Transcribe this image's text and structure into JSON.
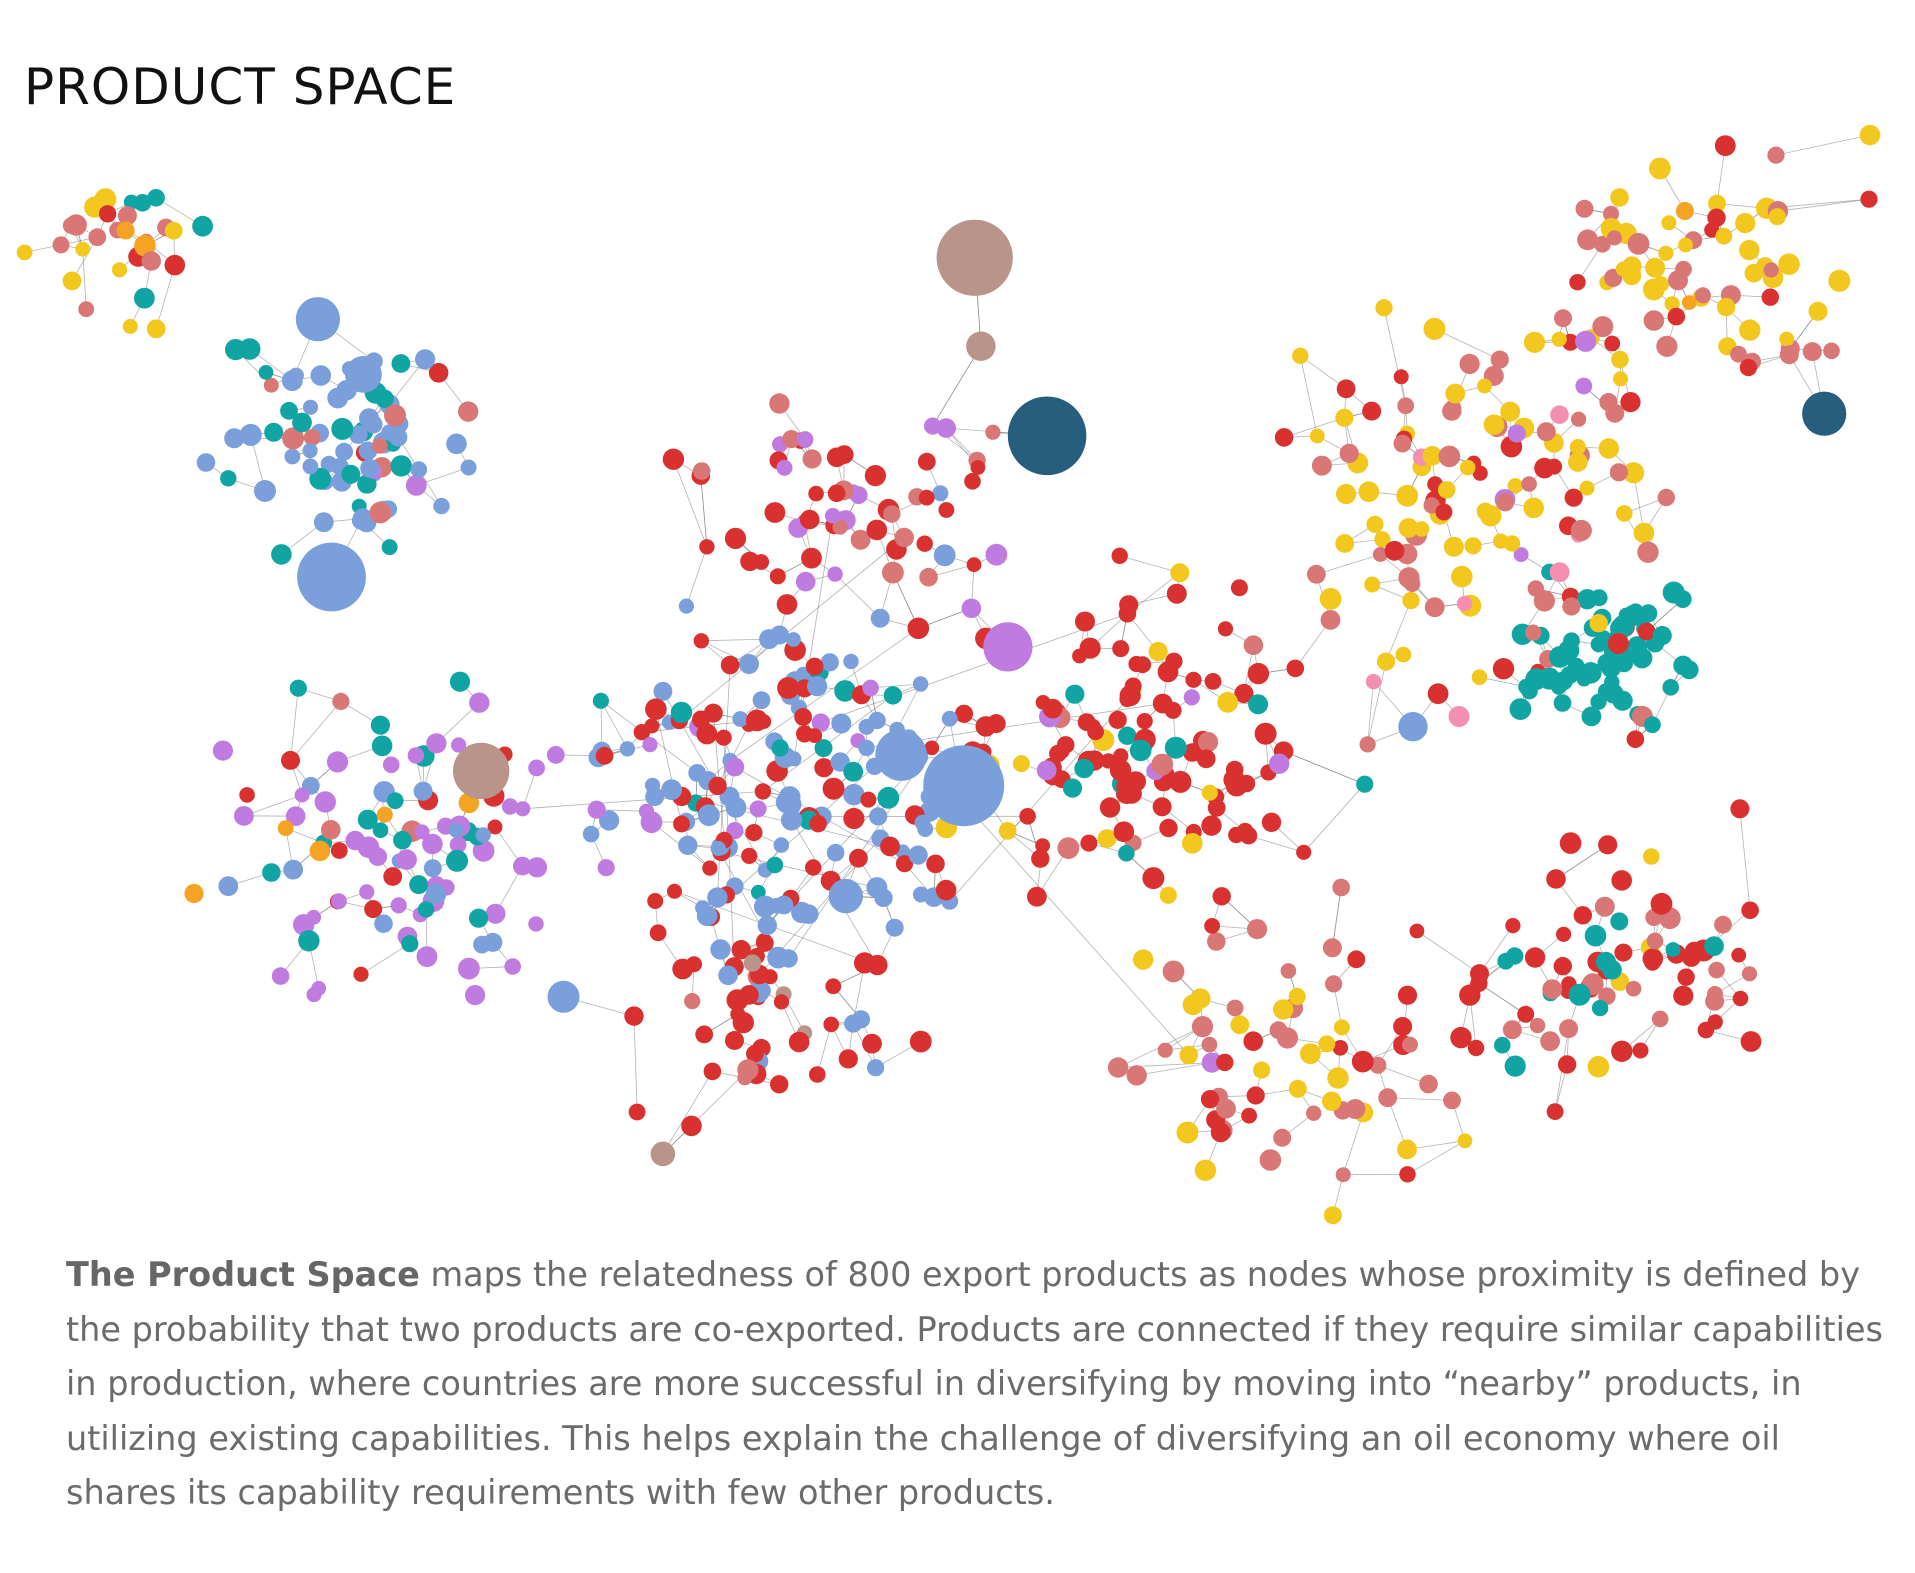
{
  "header": {
    "title": "PRODUCT SPACE"
  },
  "caption": {
    "lead": "The Product Space",
    "body": "maps the relatedness of 800 export products as nodes whose proximity is defined by the probability that two products are co-exported. Products are connected if they require similar capabilities in production, where countries are more successful in diversifying by moving into “nearby” products, in utilizing existing capabilities. This helps explain the challenge of diversifying an oil economy where oil shares its capability requirements with few other products."
  }
}
